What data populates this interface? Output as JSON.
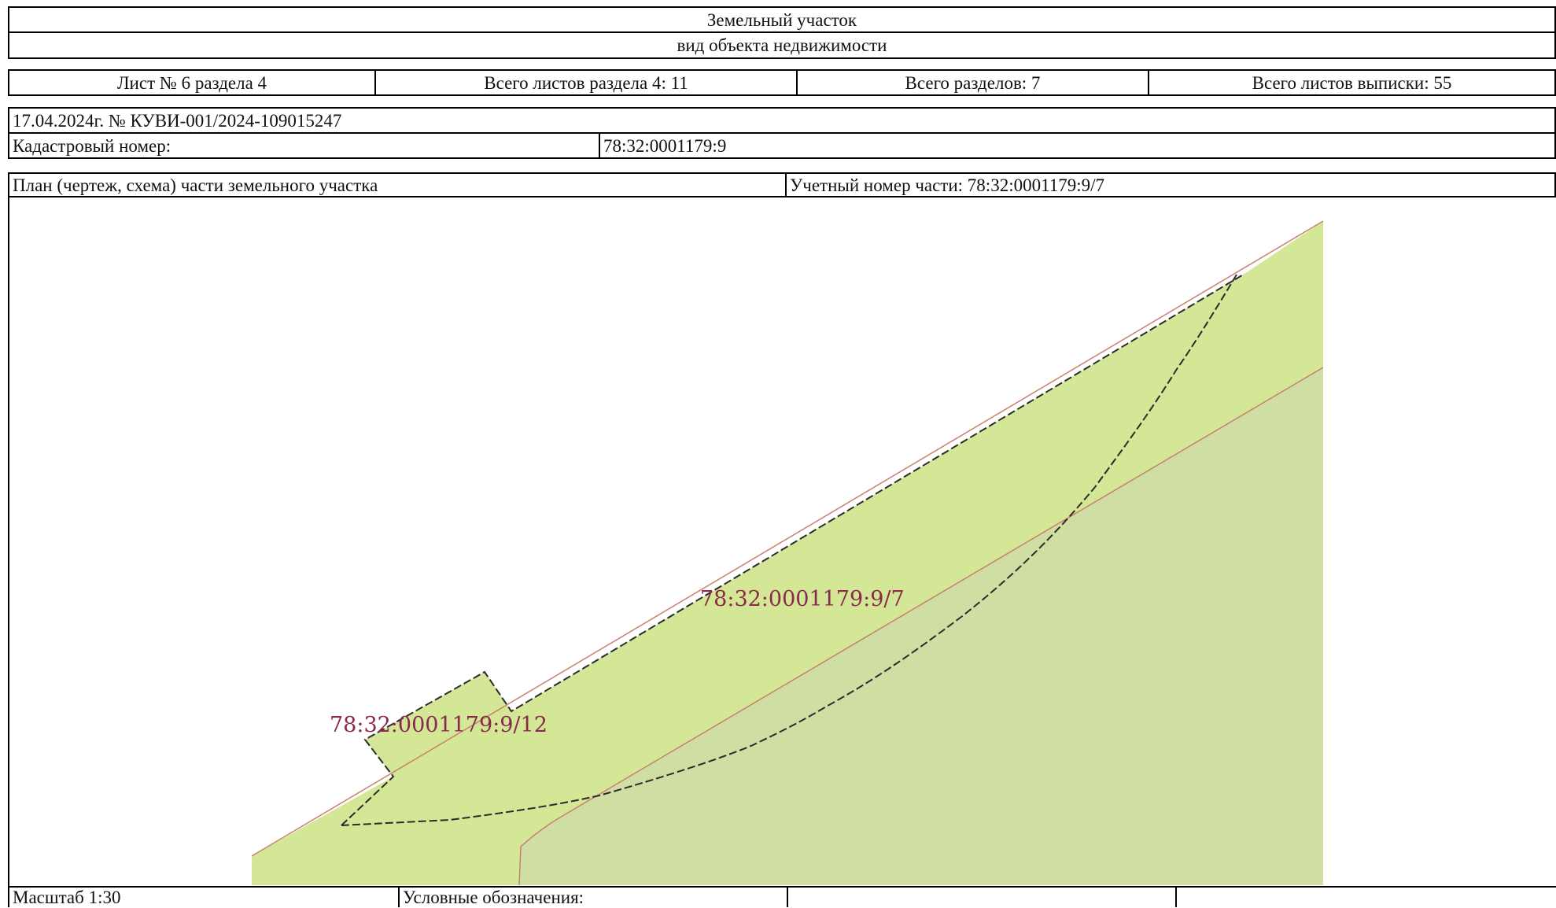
{
  "header": {
    "object_type": "Земельный участок",
    "object_kind_caption": "вид объекта недвижимости"
  },
  "sheet_info": {
    "sheet": "Лист № 6 раздела 4",
    "section_sheets": "Всего листов раздела 4: 11",
    "sections_total": "Всего разделов: 7",
    "extract_sheets": "Всего листов выписки: 55"
  },
  "document": {
    "date_number": "17.04.2024г. № КУВИ-001/2024-109015247",
    "cadastral_label": "Кадастровый номер:",
    "cadastral_value": "78:32:0001179:9"
  },
  "plan": {
    "title": "План (чертеж, схема) части земельного участка",
    "part_number": "Учетный номер части: 78:32:0001179:9/7",
    "labels": [
      "78:32:0001179:9/7",
      "78:32:0001179:9/12"
    ],
    "colors": {
      "parcel_fill": "#d3e796",
      "overlap_fill": "#cfdea3",
      "boundary": "#c98070",
      "part_line": "#3a3a3a",
      "label": "#8a2a4a"
    }
  },
  "footer": {
    "scale": "Масштаб 1:30",
    "legend_label": "Условные обозначения:"
  }
}
